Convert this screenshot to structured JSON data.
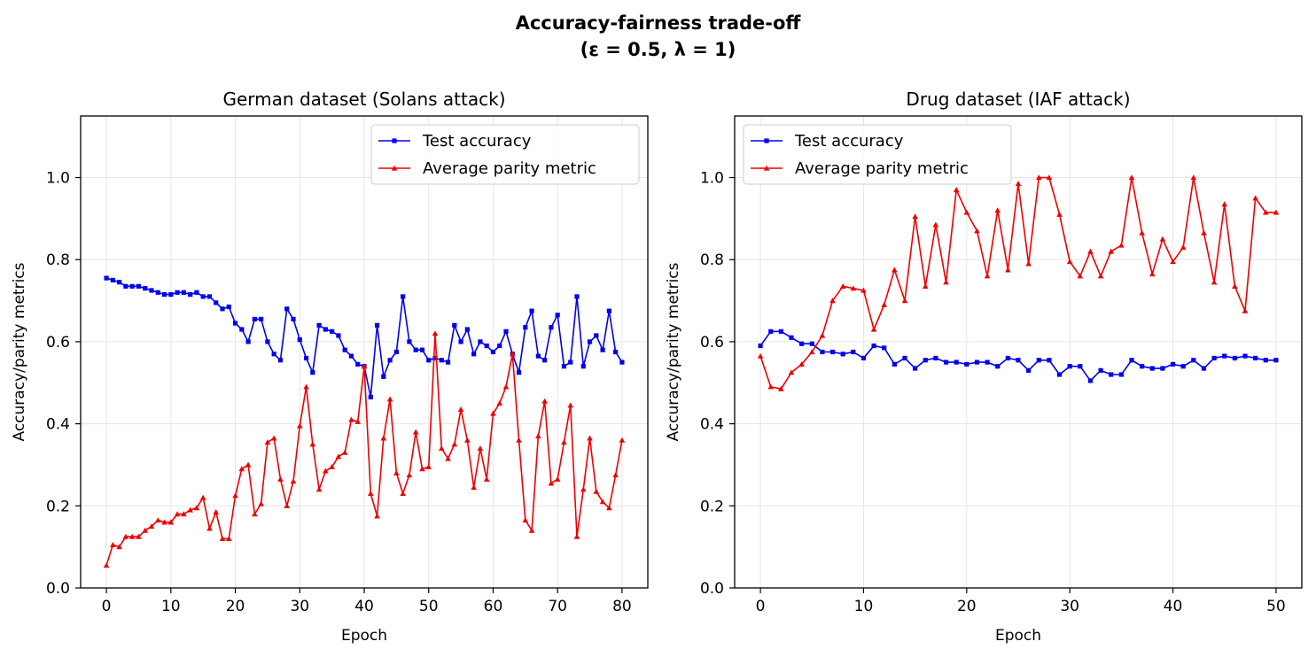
{
  "figure": {
    "title_line1": "Accuracy-fairness trade-off",
    "title_line2": "(ε = 0.5, λ = 1)"
  },
  "chart_data": [
    {
      "type": "line",
      "title": "German dataset (Solans attack)",
      "xlabel": "Epoch",
      "ylabel": "Accuracy/parity metrics",
      "xlim": [
        -4,
        84
      ],
      "ylim": [
        0,
        1.15
      ],
      "xticks": [
        0,
        10,
        20,
        30,
        40,
        50,
        60,
        70,
        80
      ],
      "yticks": [
        0.0,
        0.2,
        0.4,
        0.6,
        0.8,
        1.0
      ],
      "grid": true,
      "legend_position": "top-right",
      "x": [
        0,
        1,
        2,
        3,
        4,
        5,
        6,
        7,
        8,
        9,
        10,
        11,
        12,
        13,
        14,
        15,
        16,
        17,
        18,
        19,
        20,
        21,
        22,
        23,
        24,
        25,
        26,
        27,
        28,
        29,
        30,
        31,
        32,
        33,
        34,
        35,
        36,
        37,
        38,
        39,
        40,
        41,
        42,
        43,
        44,
        45,
        46,
        47,
        48,
        49,
        50,
        51,
        52,
        53,
        54,
        55,
        56,
        57,
        58,
        59,
        60,
        61,
        62,
        63,
        64,
        65,
        66,
        67,
        68,
        69,
        70,
        71,
        72,
        73,
        74,
        75,
        76,
        77,
        78,
        79,
        80
      ],
      "series": [
        {
          "name": "Test accuracy",
          "color": "#0000ee",
          "marker": "square",
          "values": [
            0.755,
            0.75,
            0.745,
            0.735,
            0.735,
            0.735,
            0.73,
            0.725,
            0.72,
            0.715,
            0.715,
            0.72,
            0.72,
            0.715,
            0.72,
            0.71,
            0.71,
            0.695,
            0.68,
            0.685,
            0.645,
            0.63,
            0.6,
            0.655,
            0.655,
            0.6,
            0.57,
            0.555,
            0.68,
            0.655,
            0.605,
            0.56,
            0.525,
            0.64,
            0.63,
            0.625,
            0.615,
            0.58,
            0.565,
            0.545,
            0.54,
            0.465,
            0.64,
            0.515,
            0.555,
            0.575,
            0.71,
            0.6,
            0.58,
            0.58,
            0.555,
            0.56,
            0.555,
            0.55,
            0.64,
            0.6,
            0.63,
            0.57,
            0.6,
            0.59,
            0.575,
            0.59,
            0.625,
            0.57,
            0.525,
            0.635,
            0.675,
            0.565,
            0.555,
            0.635,
            0.665,
            0.54,
            0.55,
            0.71,
            0.54,
            0.6,
            0.615,
            0.58,
            0.675,
            0.575,
            0.55
          ]
        },
        {
          "name": "Average parity metric",
          "color": "#ee0000",
          "marker": "triangle",
          "values": [
            0.055,
            0.105,
            0.1,
            0.125,
            0.125,
            0.125,
            0.14,
            0.15,
            0.165,
            0.16,
            0.16,
            0.18,
            0.18,
            0.19,
            0.195,
            0.22,
            0.145,
            0.185,
            0.12,
            0.12,
            0.225,
            0.29,
            0.3,
            0.18,
            0.205,
            0.355,
            0.365,
            0.265,
            0.2,
            0.26,
            0.395,
            0.49,
            0.35,
            0.24,
            0.285,
            0.295,
            0.32,
            0.33,
            0.41,
            0.405,
            0.54,
            0.23,
            0.175,
            0.365,
            0.46,
            0.28,
            0.23,
            0.275,
            0.38,
            0.29,
            0.295,
            0.62,
            0.34,
            0.315,
            0.35,
            0.435,
            0.36,
            0.245,
            0.34,
            0.265,
            0.425,
            0.45,
            0.49,
            0.57,
            0.36,
            0.165,
            0.14,
            0.37,
            0.455,
            0.255,
            0.265,
            0.355,
            0.445,
            0.125,
            0.24,
            0.365,
            0.235,
            0.21,
            0.195,
            0.275,
            0.36
          ]
        }
      ]
    },
    {
      "type": "line",
      "title": "Drug dataset (IAF attack)",
      "xlabel": "Epoch",
      "ylabel": "Accuracy/parity metrics",
      "xlim": [
        -2.5,
        52.5
      ],
      "ylim": [
        0,
        1.15
      ],
      "xticks": [
        0,
        10,
        20,
        30,
        40,
        50
      ],
      "yticks": [
        0.0,
        0.2,
        0.4,
        0.6,
        0.8,
        1.0
      ],
      "grid": true,
      "legend_position": "top-left",
      "x": [
        0,
        1,
        2,
        3,
        4,
        5,
        6,
        7,
        8,
        9,
        10,
        11,
        12,
        13,
        14,
        15,
        16,
        17,
        18,
        19,
        20,
        21,
        22,
        23,
        24,
        25,
        26,
        27,
        28,
        29,
        30,
        31,
        32,
        33,
        34,
        35,
        36,
        37,
        38,
        39,
        40,
        41,
        42,
        43,
        44,
        45,
        46,
        47,
        48,
        49,
        50
      ],
      "series": [
        {
          "name": "Test accuracy",
          "color": "#0000ee",
          "marker": "square",
          "values": [
            0.59,
            0.625,
            0.625,
            0.61,
            0.595,
            0.595,
            0.575,
            0.575,
            0.57,
            0.575,
            0.56,
            0.59,
            0.585,
            0.545,
            0.56,
            0.535,
            0.555,
            0.56,
            0.55,
            0.55,
            0.545,
            0.55,
            0.55,
            0.54,
            0.56,
            0.555,
            0.53,
            0.555,
            0.555,
            0.52,
            0.54,
            0.54,
            0.505,
            0.53,
            0.52,
            0.52,
            0.555,
            0.54,
            0.535,
            0.535,
            0.545,
            0.54,
            0.555,
            0.535,
            0.56,
            0.565,
            0.56,
            0.565,
            0.56,
            0.555,
            0.555
          ]
        },
        {
          "name": "Average parity metric",
          "color": "#ee0000",
          "marker": "triangle",
          "values": [
            0.565,
            0.49,
            0.485,
            0.525,
            0.545,
            0.575,
            0.615,
            0.7,
            0.735,
            0.73,
            0.725,
            0.63,
            0.69,
            0.775,
            0.7,
            0.905,
            0.735,
            0.885,
            0.745,
            0.97,
            0.915,
            0.87,
            0.76,
            0.92,
            0.775,
            0.985,
            0.79,
            1.0,
            1.0,
            0.91,
            0.795,
            0.76,
            0.82,
            0.76,
            0.82,
            0.835,
            1.0,
            0.865,
            0.765,
            0.85,
            0.795,
            0.83,
            1.0,
            0.865,
            0.745,
            0.935,
            0.735,
            0.675,
            0.95,
            0.915,
            0.915
          ]
        }
      ]
    }
  ]
}
